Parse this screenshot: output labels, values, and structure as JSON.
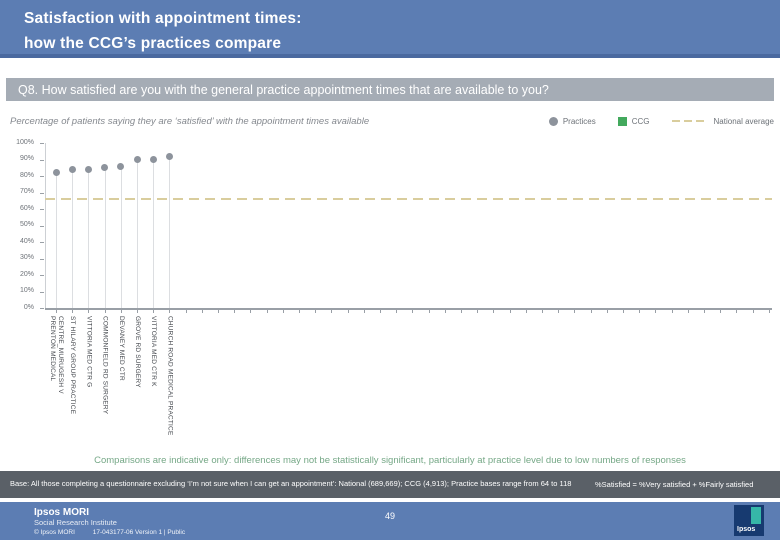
{
  "header": {
    "title_line1": "Satisfaction with appointment times:",
    "title_line2": "how the CCG’s practices compare"
  },
  "question": {
    "text": "Q8. How satisfied are you with the general practice appointment times that are available to you?"
  },
  "subtitle": "Percentage of patients saying they are ‘satisfied’ with the appointment times available",
  "legend": [
    {
      "label": "Practices",
      "swatch": "circle-icon",
      "color": "#8d939c"
    },
    {
      "label": "CCG",
      "swatch": "square-icon",
      "color": "#43a95d"
    },
    {
      "label": "National average",
      "swatch": "dashed-line-icon",
      "color": "#d9cd9d"
    }
  ],
  "chart_data": {
    "type": "scatter",
    "title": "Percentage of patients saying they are ‘satisfied’ with the appointment times available",
    "xlabel": "",
    "ylabel": "",
    "ylim": [
      0,
      100
    ],
    "grid": false,
    "legend_position": "top-right",
    "categories": [
      "PRENTON MEDICAL\nCENTRE_MURUGESH V",
      "ST HILARY GROUP PRACTICE",
      "VITTORIA MED CTR G",
      "COMMONFIELD RD SURGERY",
      "DEVANEY MED CTR",
      "GROVE RD SURGERY",
      "VITTORIA MED CTR K",
      "CHURCH ROAD MEDICAL PRACTICE"
    ],
    "series": [
      {
        "name": "Practices",
        "values": [
          82,
          84,
          84,
          85,
          86,
          90,
          90,
          92
        ]
      }
    ],
    "national_average": 66,
    "y_ticks": [
      {
        "value": 100,
        "label": "100%"
      },
      {
        "value": 90,
        "label": "90%"
      },
      {
        "value": 80,
        "label": "80%"
      },
      {
        "value": 70,
        "label": "70%"
      },
      {
        "value": 60,
        "label": "60%"
      },
      {
        "value": 50,
        "label": "50%"
      },
      {
        "value": 40,
        "label": "40%"
      },
      {
        "value": 30,
        "label": "30%"
      },
      {
        "value": 20,
        "label": "20%"
      },
      {
        "value": 10,
        "label": "10%"
      },
      {
        "value": 0,
        "label": "0%"
      }
    ],
    "n_x_slots": 45,
    "point_color": "#8d939c",
    "avg_line_color": "#d9cd9d"
  },
  "note": "Comparisons are indicative only: differences may not be statistically significant, particularly at practice level due to low numbers of responses",
  "base_bar": {
    "left": "Base: All those completing a questionnaire excluding ‘I’m not sure when I can get an appointment’: National (689,669); CCG (4,913); Practice bases range from 64 to 118",
    "right": "%Satisfied = %Very satisfied + %Fairly satisfied"
  },
  "footer": {
    "brand_line1": "Ipsos MORI",
    "brand_line2": "Social Research Institute",
    "copyright": "© Ipsos MORI",
    "doc_ref": "17-043177-06 Version 1 | Public",
    "page_number": "49",
    "logo_text": "Ipsos"
  },
  "colors": {
    "header_blue": "#5c7db3",
    "question_bar_gray": "#a5acb5",
    "base_bar_gray": "#5a6067",
    "note_green": "#76a887",
    "practices_gray": "#8d939c",
    "ccg_green": "#43a95d",
    "national_average_tan": "#d9cd9d"
  }
}
